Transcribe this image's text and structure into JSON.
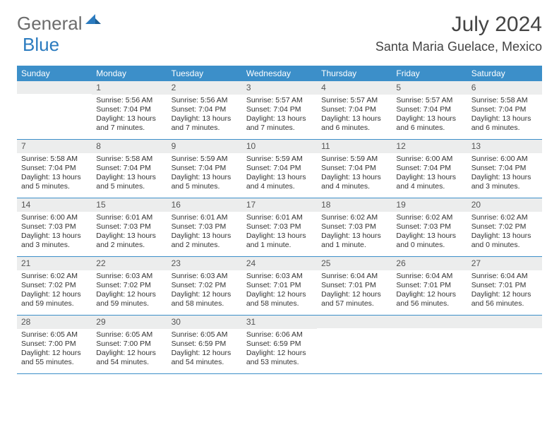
{
  "brand": {
    "general": "General",
    "blue": "Blue"
  },
  "colors": {
    "header_bar": "#3c8fc9",
    "daynum_band": "#eceded",
    "logo_blue": "#2b7bbf",
    "text": "#333333",
    "row_border": "#3c8fc9"
  },
  "title": "July 2024",
  "location": "Santa Maria Guelace, Mexico",
  "weekdays": [
    "Sunday",
    "Monday",
    "Tuesday",
    "Wednesday",
    "Thursday",
    "Friday",
    "Saturday"
  ],
  "weeks": [
    [
      {
        "n": "",
        "sunrise": "",
        "sunset": "",
        "daylight": ""
      },
      {
        "n": "1",
        "sunrise": "Sunrise: 5:56 AM",
        "sunset": "Sunset: 7:04 PM",
        "daylight": "Daylight: 13 hours and 7 minutes."
      },
      {
        "n": "2",
        "sunrise": "Sunrise: 5:56 AM",
        "sunset": "Sunset: 7:04 PM",
        "daylight": "Daylight: 13 hours and 7 minutes."
      },
      {
        "n": "3",
        "sunrise": "Sunrise: 5:57 AM",
        "sunset": "Sunset: 7:04 PM",
        "daylight": "Daylight: 13 hours and 7 minutes."
      },
      {
        "n": "4",
        "sunrise": "Sunrise: 5:57 AM",
        "sunset": "Sunset: 7:04 PM",
        "daylight": "Daylight: 13 hours and 6 minutes."
      },
      {
        "n": "5",
        "sunrise": "Sunrise: 5:57 AM",
        "sunset": "Sunset: 7:04 PM",
        "daylight": "Daylight: 13 hours and 6 minutes."
      },
      {
        "n": "6",
        "sunrise": "Sunrise: 5:58 AM",
        "sunset": "Sunset: 7:04 PM",
        "daylight": "Daylight: 13 hours and 6 minutes."
      }
    ],
    [
      {
        "n": "7",
        "sunrise": "Sunrise: 5:58 AM",
        "sunset": "Sunset: 7:04 PM",
        "daylight": "Daylight: 13 hours and 5 minutes."
      },
      {
        "n": "8",
        "sunrise": "Sunrise: 5:58 AM",
        "sunset": "Sunset: 7:04 PM",
        "daylight": "Daylight: 13 hours and 5 minutes."
      },
      {
        "n": "9",
        "sunrise": "Sunrise: 5:59 AM",
        "sunset": "Sunset: 7:04 PM",
        "daylight": "Daylight: 13 hours and 5 minutes."
      },
      {
        "n": "10",
        "sunrise": "Sunrise: 5:59 AM",
        "sunset": "Sunset: 7:04 PM",
        "daylight": "Daylight: 13 hours and 4 minutes."
      },
      {
        "n": "11",
        "sunrise": "Sunrise: 5:59 AM",
        "sunset": "Sunset: 7:04 PM",
        "daylight": "Daylight: 13 hours and 4 minutes."
      },
      {
        "n": "12",
        "sunrise": "Sunrise: 6:00 AM",
        "sunset": "Sunset: 7:04 PM",
        "daylight": "Daylight: 13 hours and 4 minutes."
      },
      {
        "n": "13",
        "sunrise": "Sunrise: 6:00 AM",
        "sunset": "Sunset: 7:04 PM",
        "daylight": "Daylight: 13 hours and 3 minutes."
      }
    ],
    [
      {
        "n": "14",
        "sunrise": "Sunrise: 6:00 AM",
        "sunset": "Sunset: 7:03 PM",
        "daylight": "Daylight: 13 hours and 3 minutes."
      },
      {
        "n": "15",
        "sunrise": "Sunrise: 6:01 AM",
        "sunset": "Sunset: 7:03 PM",
        "daylight": "Daylight: 13 hours and 2 minutes."
      },
      {
        "n": "16",
        "sunrise": "Sunrise: 6:01 AM",
        "sunset": "Sunset: 7:03 PM",
        "daylight": "Daylight: 13 hours and 2 minutes."
      },
      {
        "n": "17",
        "sunrise": "Sunrise: 6:01 AM",
        "sunset": "Sunset: 7:03 PM",
        "daylight": "Daylight: 13 hours and 1 minute."
      },
      {
        "n": "18",
        "sunrise": "Sunrise: 6:02 AM",
        "sunset": "Sunset: 7:03 PM",
        "daylight": "Daylight: 13 hours and 1 minute."
      },
      {
        "n": "19",
        "sunrise": "Sunrise: 6:02 AM",
        "sunset": "Sunset: 7:03 PM",
        "daylight": "Daylight: 13 hours and 0 minutes."
      },
      {
        "n": "20",
        "sunrise": "Sunrise: 6:02 AM",
        "sunset": "Sunset: 7:02 PM",
        "daylight": "Daylight: 13 hours and 0 minutes."
      }
    ],
    [
      {
        "n": "21",
        "sunrise": "Sunrise: 6:02 AM",
        "sunset": "Sunset: 7:02 PM",
        "daylight": "Daylight: 12 hours and 59 minutes."
      },
      {
        "n": "22",
        "sunrise": "Sunrise: 6:03 AM",
        "sunset": "Sunset: 7:02 PM",
        "daylight": "Daylight: 12 hours and 59 minutes."
      },
      {
        "n": "23",
        "sunrise": "Sunrise: 6:03 AM",
        "sunset": "Sunset: 7:02 PM",
        "daylight": "Daylight: 12 hours and 58 minutes."
      },
      {
        "n": "24",
        "sunrise": "Sunrise: 6:03 AM",
        "sunset": "Sunset: 7:01 PM",
        "daylight": "Daylight: 12 hours and 58 minutes."
      },
      {
        "n": "25",
        "sunrise": "Sunrise: 6:04 AM",
        "sunset": "Sunset: 7:01 PM",
        "daylight": "Daylight: 12 hours and 57 minutes."
      },
      {
        "n": "26",
        "sunrise": "Sunrise: 6:04 AM",
        "sunset": "Sunset: 7:01 PM",
        "daylight": "Daylight: 12 hours and 56 minutes."
      },
      {
        "n": "27",
        "sunrise": "Sunrise: 6:04 AM",
        "sunset": "Sunset: 7:01 PM",
        "daylight": "Daylight: 12 hours and 56 minutes."
      }
    ],
    [
      {
        "n": "28",
        "sunrise": "Sunrise: 6:05 AM",
        "sunset": "Sunset: 7:00 PM",
        "daylight": "Daylight: 12 hours and 55 minutes."
      },
      {
        "n": "29",
        "sunrise": "Sunrise: 6:05 AM",
        "sunset": "Sunset: 7:00 PM",
        "daylight": "Daylight: 12 hours and 54 minutes."
      },
      {
        "n": "30",
        "sunrise": "Sunrise: 6:05 AM",
        "sunset": "Sunset: 6:59 PM",
        "daylight": "Daylight: 12 hours and 54 minutes."
      },
      {
        "n": "31",
        "sunrise": "Sunrise: 6:06 AM",
        "sunset": "Sunset: 6:59 PM",
        "daylight": "Daylight: 12 hours and 53 minutes."
      },
      {
        "n": "",
        "sunrise": "",
        "sunset": "",
        "daylight": ""
      },
      {
        "n": "",
        "sunrise": "",
        "sunset": "",
        "daylight": ""
      },
      {
        "n": "",
        "sunrise": "",
        "sunset": "",
        "daylight": ""
      }
    ]
  ]
}
